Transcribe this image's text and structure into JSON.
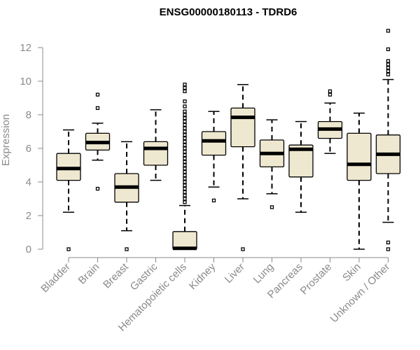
{
  "chart_data": {
    "type": "boxplot",
    "title": "ENSG00000180113 - TDRD6",
    "xlabel": "",
    "ylabel": "Expression",
    "ylim": [
      0,
      12
    ],
    "yticks": [
      0,
      2,
      4,
      6,
      8,
      10,
      12
    ],
    "grid": false,
    "colors": {
      "box_fill": "#efe8d0",
      "stroke": "#000000",
      "axis": "#8a8a8a",
      "median": "#000000"
    },
    "categories": [
      "Bladder",
      "Brain",
      "Breast",
      "Gastric",
      "Hematopoietic cells",
      "Kidney",
      "Liver",
      "Lung",
      "Pancreas",
      "Prostate",
      "Skin",
      "Unknown / Other"
    ],
    "boxes": [
      {
        "category": "Bladder",
        "whisker_low": 2.2,
        "q1": 4.1,
        "median": 4.8,
        "q3": 5.7,
        "whisker_high": 7.1,
        "outliers": [
          0.0
        ]
      },
      {
        "category": "Brain",
        "whisker_low": 5.3,
        "q1": 5.9,
        "median": 6.35,
        "q3": 6.9,
        "whisker_high": 7.5,
        "outliers": [
          9.2,
          8.4,
          3.6
        ]
      },
      {
        "category": "Breast",
        "whisker_low": 1.1,
        "q1": 2.8,
        "median": 3.7,
        "q3": 4.5,
        "whisker_high": 6.4,
        "outliers": [
          0.0
        ]
      },
      {
        "category": "Gastric",
        "whisker_low": 4.1,
        "q1": 5.0,
        "median": 6.0,
        "q3": 6.4,
        "whisker_high": 8.3,
        "outliers": []
      },
      {
        "category": "Hematopoietic cells",
        "whisker_low": 0.0,
        "q1": 0.0,
        "median": 0.05,
        "q3": 1.05,
        "whisker_high": 2.6,
        "outliers": [
          9.8,
          9.6,
          9.4,
          8.8,
          8.5,
          8.2,
          8.0,
          7.8,
          7.6,
          7.4,
          7.2,
          7.0,
          6.8,
          6.6,
          6.4,
          6.2,
          6.0,
          5.8,
          5.6,
          5.4,
          5.2,
          5.0,
          4.8,
          4.6,
          4.4,
          4.2,
          4.0,
          3.8,
          3.6,
          3.4,
          3.2,
          3.0,
          2.8
        ]
      },
      {
        "category": "Kidney",
        "whisker_low": 3.7,
        "q1": 5.6,
        "median": 6.45,
        "q3": 7.0,
        "whisker_high": 8.2,
        "outliers": [
          2.9
        ]
      },
      {
        "category": "Liver",
        "whisker_low": 3.0,
        "q1": 6.1,
        "median": 7.85,
        "q3": 8.4,
        "whisker_high": 9.8,
        "outliers": [
          0.0
        ]
      },
      {
        "category": "Lung",
        "whisker_low": 3.3,
        "q1": 4.9,
        "median": 5.7,
        "q3": 6.5,
        "whisker_high": 7.7,
        "outliers": [
          2.5
        ]
      },
      {
        "category": "Pancreas",
        "whisker_low": 2.2,
        "q1": 4.3,
        "median": 5.95,
        "q3": 6.2,
        "whisker_high": 7.6,
        "outliers": []
      },
      {
        "category": "Prostate",
        "whisker_low": 5.7,
        "q1": 6.6,
        "median": 7.15,
        "q3": 7.6,
        "whisker_high": 8.7,
        "outliers": [
          9.4,
          9.2
        ]
      },
      {
        "category": "Skin",
        "whisker_low": 0.0,
        "q1": 4.1,
        "median": 5.05,
        "q3": 6.9,
        "whisker_high": 8.1,
        "outliers": []
      },
      {
        "category": "Unknown / Other",
        "whisker_low": 1.6,
        "q1": 4.5,
        "median": 5.65,
        "q3": 6.8,
        "whisker_high": 10.1,
        "outliers": [
          13.0,
          11.9,
          11.2,
          11.0,
          10.8,
          10.6,
          10.4,
          0.4,
          0.0
        ]
      }
    ]
  }
}
